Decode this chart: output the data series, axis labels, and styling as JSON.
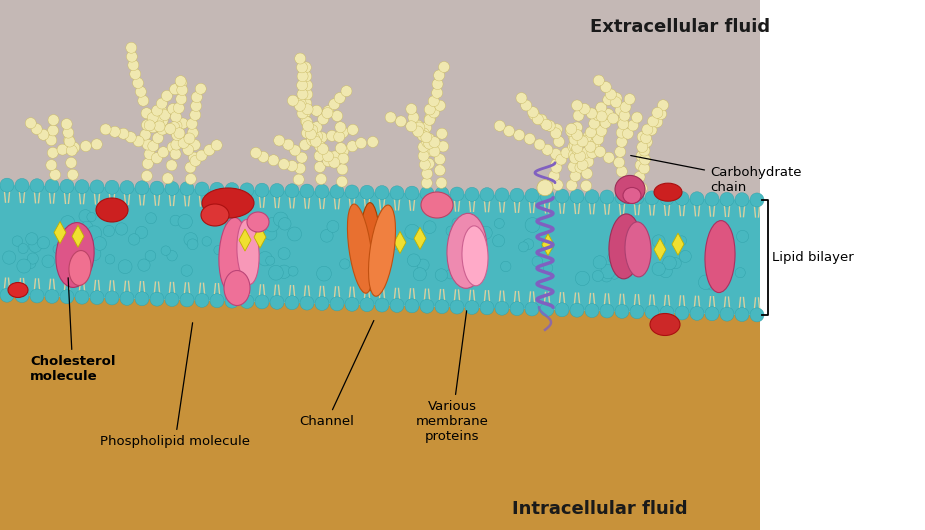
{
  "bg_extracellular": "#c4b8b5",
  "bg_intracellular": "#c8923a",
  "bg_membrane_teal": "#4ab8c0",
  "phospholipid_head_color": "#4ab8c0",
  "phospholipid_tail_color": "#e0d8b0",
  "carbohydrate_color": "#f0e8b8",
  "cholesterol_color": "#f0e040",
  "helix_color": "#8868c0",
  "label_color": "#000000",
  "labels": {
    "extracellular": "Extracellular fluid",
    "intracellular": "Intracellular fluid",
    "carbohydrate": "Carbohydrate\nchain",
    "lipid_bilayer": "Lipid bilayer",
    "cholesterol": "Cholesterol\nmolecule",
    "phospholipid": "Phospholipid molecule",
    "channel": "Channel",
    "membrane_proteins": "Various\nmembrane\nproteins"
  },
  "figsize": [
    9.25,
    5.3
  ],
  "dpi": 100
}
